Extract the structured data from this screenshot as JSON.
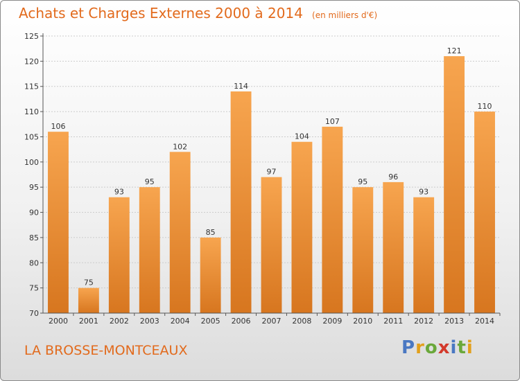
{
  "header": {
    "title": "Achats et Charges Externes 2000 à 2014",
    "subtitle": "(en milliers d'€)"
  },
  "footer": {
    "place": "LA BROSSE-MONTCEAUX",
    "logo": "Proxiti"
  },
  "colors": {
    "title": "#e26a1c",
    "bar_top": "#f7a54f",
    "bar_bottom": "#d7761f",
    "axis": "#555555",
    "grid": "#cccccc"
  },
  "chart_data": {
    "type": "bar",
    "categories": [
      "2000",
      "2001",
      "2002",
      "2003",
      "2004",
      "2005",
      "2006",
      "2007",
      "2008",
      "2009",
      "2010",
      "2011",
      "2012",
      "2013",
      "2014"
    ],
    "values": [
      106,
      75,
      93,
      95,
      102,
      85,
      114,
      97,
      104,
      107,
      95,
      96,
      93,
      121,
      110
    ],
    "ylim": [
      70,
      125
    ],
    "yticks": [
      70,
      75,
      80,
      85,
      90,
      95,
      100,
      105,
      110,
      115,
      120,
      125
    ],
    "grid": true,
    "data_labels": true
  }
}
